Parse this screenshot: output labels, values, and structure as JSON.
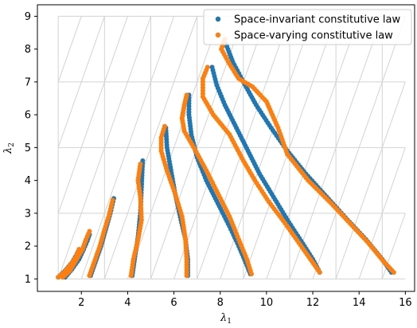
{
  "chart_data": {
    "type": "scatter",
    "xlabel": "λ1",
    "ylabel": "λ2",
    "xlim": [
      0.1,
      16.4
    ],
    "ylim": [
      0.62,
      9.35
    ],
    "xticks": [
      2,
      4,
      6,
      8,
      10,
      12,
      14,
      16
    ],
    "yticks": [
      1,
      2,
      3,
      4,
      5,
      6,
      7,
      8,
      9
    ],
    "grid": "triangular reference grid (light gray), x from 1 to 16, y from 1 to 9",
    "legend": {
      "placement": "top-right"
    },
    "colors": {
      "blue": "#1f77b4",
      "orange": "#ff7f0e",
      "grid": "#d3d3d3"
    },
    "series": [
      {
        "name": "Space-invariant constitutive law",
        "color": "#1f77b4",
        "curves": [
          [
            [
              1.0,
              1.05
            ],
            [
              1.3,
              1.25
            ],
            [
              1.6,
              1.5
            ],
            [
              1.8,
              1.75
            ],
            [
              1.9,
              1.9
            ]
          ],
          [
            [
              1.3,
              1.05
            ],
            [
              1.6,
              1.3
            ],
            [
              1.9,
              1.6
            ],
            [
              2.1,
              1.9
            ],
            [
              2.25,
              2.15
            ],
            [
              2.35,
              2.35
            ]
          ],
          [
            [
              2.4,
              1.1
            ],
            [
              2.6,
              1.5
            ],
            [
              2.85,
              2.0
            ],
            [
              3.05,
              2.5
            ],
            [
              3.25,
              3.0
            ],
            [
              3.4,
              3.45
            ]
          ],
          [
            [
              4.2,
              1.1
            ],
            [
              4.3,
              1.6
            ],
            [
              4.45,
              2.3
            ],
            [
              4.55,
              3.0
            ],
            [
              4.6,
              3.8
            ],
            [
              4.65,
              4.6
            ]
          ],
          [
            [
              6.6,
              1.1
            ],
            [
              6.6,
              1.6
            ],
            [
              6.5,
              2.2
            ],
            [
              6.3,
              2.8
            ],
            [
              6.05,
              3.6
            ],
            [
              5.85,
              4.4
            ],
            [
              5.7,
              5.0
            ],
            [
              5.65,
              5.6
            ]
          ],
          [
            [
              9.3,
              1.15
            ],
            [
              9.1,
              1.5
            ],
            [
              8.8,
              2.0
            ],
            [
              8.4,
              2.6
            ],
            [
              7.9,
              3.3
            ],
            [
              7.4,
              4.0
            ],
            [
              7.0,
              4.7
            ],
            [
              6.75,
              5.4
            ],
            [
              6.65,
              6.0
            ],
            [
              6.65,
              6.6
            ]
          ],
          [
            [
              12.3,
              1.2
            ],
            [
              12.0,
              1.6
            ],
            [
              11.5,
              2.15
            ],
            [
              10.9,
              2.8
            ],
            [
              10.3,
              3.5
            ],
            [
              9.7,
              4.2
            ],
            [
              9.2,
              4.9
            ],
            [
              8.7,
              5.6
            ],
            [
              8.2,
              6.3
            ],
            [
              7.85,
              6.9
            ],
            [
              7.65,
              7.45
            ]
          ],
          [
            [
              15.4,
              1.2
            ],
            [
              15.0,
              1.6
            ],
            [
              14.3,
              2.2
            ],
            [
              13.5,
              2.8
            ],
            [
              12.6,
              3.5
            ],
            [
              11.7,
              4.2
            ],
            [
              10.9,
              4.9
            ],
            [
              10.2,
              5.6
            ],
            [
              9.55,
              6.3
            ],
            [
              9.0,
              7.0
            ],
            [
              8.55,
              7.6
            ],
            [
              8.25,
              8.15
            ]
          ]
        ]
      },
      {
        "name": "Space-varying constitutive law",
        "color": "#ff7f0e",
        "curves": [
          [
            [
              1.0,
              1.05
            ],
            [
              1.25,
              1.2
            ],
            [
              1.5,
              1.4
            ],
            [
              1.75,
              1.65
            ],
            [
              1.9,
              1.9
            ]
          ],
          [
            [
              1.2,
              1.05
            ],
            [
              1.5,
              1.25
            ],
            [
              1.8,
              1.6
            ],
            [
              2.05,
              1.9
            ],
            [
              2.2,
              2.2
            ],
            [
              2.35,
              2.45
            ]
          ],
          [
            [
              2.35,
              1.1
            ],
            [
              2.55,
              1.5
            ],
            [
              2.8,
              2.0
            ],
            [
              3.0,
              2.5
            ],
            [
              3.2,
              2.95
            ],
            [
              3.35,
              3.4
            ]
          ],
          [
            [
              4.15,
              1.1
            ],
            [
              4.25,
              1.6
            ],
            [
              4.45,
              2.2
            ],
            [
              4.6,
              2.8
            ],
            [
              4.55,
              3.5
            ],
            [
              4.45,
              4.0
            ],
            [
              4.55,
              4.5
            ]
          ],
          [
            [
              6.55,
              1.1
            ],
            [
              6.55,
              1.6
            ],
            [
              6.5,
              2.2
            ],
            [
              6.35,
              2.9
            ],
            [
              6.05,
              3.6
            ],
            [
              5.7,
              4.3
            ],
            [
              5.45,
              4.9
            ],
            [
              5.45,
              5.3
            ],
            [
              5.6,
              5.65
            ]
          ],
          [
            [
              9.35,
              1.15
            ],
            [
              9.15,
              1.6
            ],
            [
              8.8,
              2.2
            ],
            [
              8.4,
              2.9
            ],
            [
              7.9,
              3.6
            ],
            [
              7.4,
              4.3
            ],
            [
              6.9,
              4.95
            ],
            [
              6.45,
              5.5
            ],
            [
              6.35,
              5.9
            ],
            [
              6.45,
              6.3
            ],
            [
              6.55,
              6.6
            ]
          ],
          [
            [
              12.3,
              1.2
            ],
            [
              11.9,
              1.6
            ],
            [
              11.4,
              2.1
            ],
            [
              10.8,
              2.7
            ],
            [
              10.1,
              3.35
            ],
            [
              9.5,
              4.0
            ],
            [
              9.0,
              4.6
            ],
            [
              8.4,
              5.4
            ],
            [
              7.7,
              6.0
            ],
            [
              7.25,
              6.55
            ],
            [
              7.25,
              7.1
            ],
            [
              7.45,
              7.45
            ]
          ],
          [
            [
              15.5,
              1.2
            ],
            [
              15.1,
              1.5
            ],
            [
              14.4,
              2.1
            ],
            [
              13.6,
              2.7
            ],
            [
              12.8,
              3.3
            ],
            [
              11.8,
              4.0
            ],
            [
              10.9,
              4.8
            ],
            [
              10.5,
              5.6
            ],
            [
              10.0,
              6.4
            ],
            [
              9.4,
              6.85
            ],
            [
              8.8,
              7.1
            ],
            [
              8.4,
              7.55
            ],
            [
              8.05,
              8.0
            ],
            [
              8.2,
              8.3
            ]
          ]
        ]
      }
    ]
  }
}
